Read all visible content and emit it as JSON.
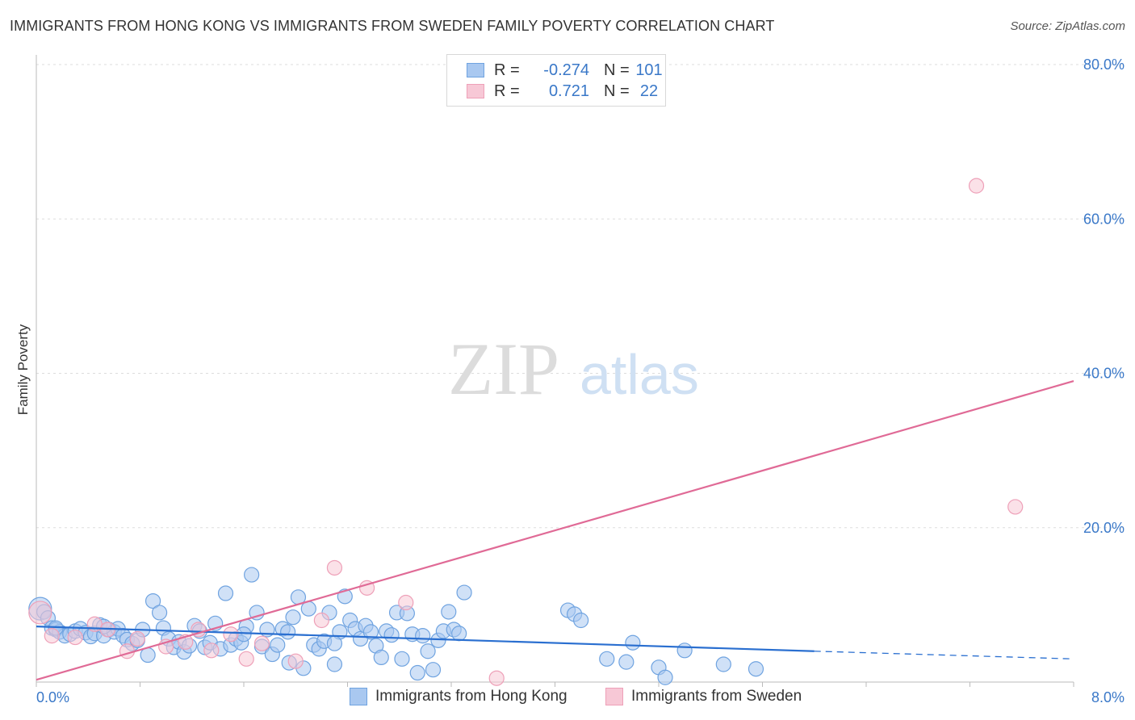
{
  "chart_data": {
    "type": "scatter",
    "title": "IMMIGRANTS FROM HONG KONG VS IMMIGRANTS FROM SWEDEN FAMILY POVERTY CORRELATION CHART",
    "source": "Source: ZipAtlas.com",
    "ylabel": "Family Poverty",
    "xlim": [
      0,
      8
    ],
    "ylim": [
      0,
      80
    ],
    "x_tick_labels": [
      "0.0%",
      "8.0%"
    ],
    "y_ticks": [
      20,
      40,
      60,
      80
    ],
    "y_tick_labels": [
      "20.0%",
      "40.0%",
      "60.0%",
      "80.0%"
    ],
    "grid": true,
    "watermark": "ZIPatlas",
    "legend": {
      "placement": "top-center",
      "entries": [
        {
          "r_label": "R =",
          "r_value": "-0.274",
          "n_label": "N =",
          "n_value": "101"
        },
        {
          "r_label": "R =",
          "r_value": "0.721",
          "n_label": "N =",
          "n_value": "22"
        }
      ]
    },
    "series": [
      {
        "name": "Immigrants from Hong Kong",
        "color": "#6fa3e0",
        "fill": "#a9c8f0",
        "line_color": "#2a6fd0",
        "trend": {
          "x0": 0.0,
          "y0": 7.2,
          "x1": 6.0,
          "y1": 4.0,
          "dash_to_x": 8.0,
          "dash_to_y": 3.0
        },
        "points": [
          [
            0.03,
            9.5
          ],
          [
            0.06,
            9.1
          ],
          [
            0.09,
            8.3
          ],
          [
            0.12,
            7.0
          ],
          [
            0.15,
            6.8
          ],
          [
            0.18,
            6.5
          ],
          [
            0.22,
            6.0
          ],
          [
            0.26,
            6.2
          ],
          [
            0.3,
            6.6
          ],
          [
            0.34,
            6.9
          ],
          [
            0.38,
            6.4
          ],
          [
            0.42,
            5.9
          ],
          [
            0.45,
            6.3
          ],
          [
            0.49,
            7.4
          ],
          [
            0.52,
            6.0
          ],
          [
            0.56,
            6.8
          ],
          [
            0.6,
            6.5
          ],
          [
            0.63,
            6.9
          ],
          [
            0.67,
            6.0
          ],
          [
            0.7,
            5.5
          ],
          [
            0.74,
            5.0
          ],
          [
            0.78,
            5.4
          ],
          [
            0.82,
            6.8
          ],
          [
            0.86,
            3.5
          ],
          [
            0.9,
            10.5
          ],
          [
            0.95,
            9.0
          ],
          [
            0.98,
            7.0
          ],
          [
            1.02,
            5.6
          ],
          [
            1.06,
            4.5
          ],
          [
            1.1,
            5.2
          ],
          [
            1.14,
            3.9
          ],
          [
            1.18,
            4.7
          ],
          [
            1.22,
            7.3
          ],
          [
            1.26,
            6.6
          ],
          [
            1.3,
            4.5
          ],
          [
            1.34,
            5.1
          ],
          [
            1.38,
            7.6
          ],
          [
            1.42,
            4.3
          ],
          [
            1.46,
            11.5
          ],
          [
            1.5,
            4.8
          ],
          [
            1.54,
            5.6
          ],
          [
            1.58,
            5.1
          ],
          [
            1.62,
            7.2
          ],
          [
            1.66,
            13.9
          ],
          [
            1.7,
            9.0
          ],
          [
            1.74,
            4.6
          ],
          [
            1.78,
            6.8
          ],
          [
            1.82,
            3.6
          ],
          [
            1.86,
            4.8
          ],
          [
            1.9,
            6.9
          ],
          [
            1.94,
            6.5
          ],
          [
            1.98,
            8.4
          ],
          [
            2.02,
            11.0
          ],
          [
            2.06,
            1.8
          ],
          [
            2.1,
            9.5
          ],
          [
            2.14,
            4.8
          ],
          [
            2.18,
            4.3
          ],
          [
            2.22,
            5.3
          ],
          [
            2.26,
            9.0
          ],
          [
            2.3,
            2.3
          ],
          [
            2.34,
            6.5
          ],
          [
            2.38,
            11.1
          ],
          [
            2.42,
            8.0
          ],
          [
            2.46,
            6.9
          ],
          [
            2.5,
            5.6
          ],
          [
            2.54,
            7.3
          ],
          [
            2.58,
            6.5
          ],
          [
            2.62,
            4.7
          ],
          [
            2.66,
            3.2
          ],
          [
            2.7,
            6.6
          ],
          [
            2.74,
            6.1
          ],
          [
            2.78,
            9.0
          ],
          [
            2.82,
            3.0
          ],
          [
            2.86,
            8.9
          ],
          [
            2.9,
            6.2
          ],
          [
            2.94,
            1.2
          ],
          [
            2.98,
            6.0
          ],
          [
            3.02,
            4.0
          ],
          [
            3.06,
            1.6
          ],
          [
            3.1,
            5.4
          ],
          [
            3.14,
            6.6
          ],
          [
            3.18,
            9.1
          ],
          [
            3.22,
            6.8
          ],
          [
            3.26,
            6.3
          ],
          [
            3.3,
            11.6
          ],
          [
            4.1,
            9.3
          ],
          [
            4.15,
            8.8
          ],
          [
            4.2,
            8.0
          ],
          [
            4.4,
            3.0
          ],
          [
            4.55,
            2.6
          ],
          [
            4.6,
            5.1
          ],
          [
            4.8,
            1.9
          ],
          [
            4.85,
            0.6
          ],
          [
            5.0,
            4.1
          ],
          [
            5.3,
            2.3
          ],
          [
            5.55,
            1.7
          ],
          [
            0.15,
            7.0
          ],
          [
            0.52,
            7.2
          ],
          [
            1.6,
            6.2
          ],
          [
            1.95,
            2.5
          ],
          [
            2.3,
            5.0
          ]
        ]
      },
      {
        "name": "Immigrants from Sweden",
        "color": "#eea0b8",
        "fill": "#f7c8d6",
        "line_color": "#e06a96",
        "trend": {
          "x0": 0.0,
          "y0": 0.3,
          "x1": 8.0,
          "y1": 39.0
        },
        "points": [
          [
            0.03,
            9.0
          ],
          [
            0.12,
            6.0
          ],
          [
            0.3,
            5.8
          ],
          [
            0.45,
            7.5
          ],
          [
            0.55,
            6.8
          ],
          [
            0.7,
            4.0
          ],
          [
            0.78,
            5.6
          ],
          [
            1.0,
            4.6
          ],
          [
            1.15,
            5.2
          ],
          [
            1.25,
            6.8
          ],
          [
            1.35,
            4.1
          ],
          [
            1.5,
            6.2
          ],
          [
            1.62,
            3.0
          ],
          [
            1.74,
            5.0
          ],
          [
            2.0,
            2.7
          ],
          [
            2.2,
            8.0
          ],
          [
            2.3,
            14.8
          ],
          [
            2.55,
            12.2
          ],
          [
            2.85,
            10.3
          ],
          [
            3.55,
            0.5
          ],
          [
            7.25,
            64.3
          ],
          [
            7.55,
            22.7
          ]
        ]
      }
    ]
  }
}
